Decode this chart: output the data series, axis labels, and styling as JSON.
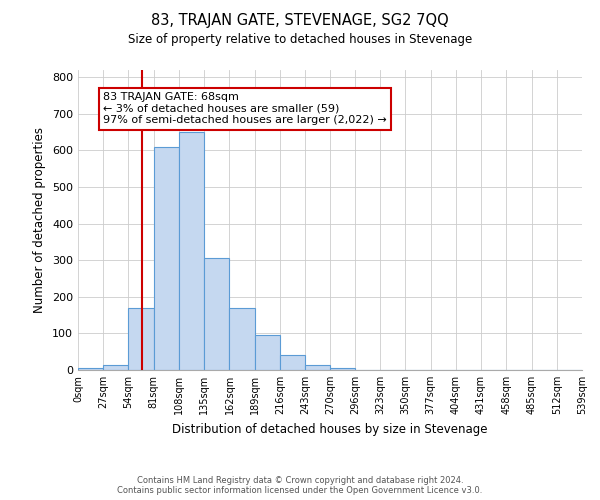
{
  "title": "83, TRAJAN GATE, STEVENAGE, SG2 7QQ",
  "subtitle": "Size of property relative to detached houses in Stevenage",
  "xlabel": "Distribution of detached houses by size in Stevenage",
  "ylabel": "Number of detached properties",
  "bar_edges": [
    0,
    27,
    54,
    81,
    108,
    135,
    162,
    189,
    216,
    243,
    270,
    296,
    323,
    350,
    377,
    404,
    431,
    458,
    485,
    512,
    539
  ],
  "bar_heights": [
    5,
    15,
    170,
    610,
    650,
    305,
    170,
    97,
    40,
    13,
    5,
    1,
    0,
    1,
    0,
    0,
    0,
    0,
    0,
    0
  ],
  "bar_color": "#c5d8f0",
  "bar_edge_color": "#5b9bd5",
  "vline_x": 68,
  "vline_color": "#cc0000",
  "ylim": [
    0,
    820
  ],
  "yticks": [
    0,
    100,
    200,
    300,
    400,
    500,
    600,
    700,
    800
  ],
  "annotation_box_text": "83 TRAJAN GATE: 68sqm\n← 3% of detached houses are smaller (59)\n97% of semi-detached houses are larger (2,022) →",
  "annotation_box_color": "#cc0000",
  "footer_line1": "Contains HM Land Registry data © Crown copyright and database right 2024.",
  "footer_line2": "Contains public sector information licensed under the Open Government Licence v3.0.",
  "bg_color": "#ffffff",
  "grid_color": "#cccccc",
  "tick_labels": [
    "0sqm",
    "27sqm",
    "54sqm",
    "81sqm",
    "108sqm",
    "135sqm",
    "162sqm",
    "189sqm",
    "216sqm",
    "243sqm",
    "270sqm",
    "296sqm",
    "323sqm",
    "350sqm",
    "377sqm",
    "404sqm",
    "431sqm",
    "458sqm",
    "485sqm",
    "512sqm",
    "539sqm"
  ]
}
